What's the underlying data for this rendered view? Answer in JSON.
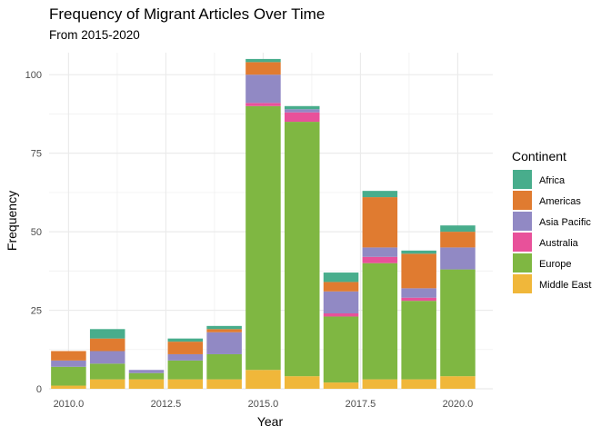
{
  "chart_data": {
    "type": "bar",
    "stacked": true,
    "title": "Frequency of Migrant Articles Over Time",
    "subtitle": "From 2015-2020",
    "xlabel": "Year",
    "ylabel": "Frequency",
    "xlim": [
      2009.5,
      2020.9
    ],
    "ylim": [
      0,
      107
    ],
    "x_ticks": [
      2010.0,
      2012.5,
      2015.0,
      2017.5,
      2020.0
    ],
    "x_tick_labels": [
      "2010.0",
      "2012.5",
      "2015.0",
      "2017.5",
      "2020.0"
    ],
    "y_ticks": [
      0,
      25,
      50,
      75,
      100
    ],
    "y_tick_labels": [
      "0",
      "25",
      "50",
      "75",
      "100"
    ],
    "grid": true,
    "legend": {
      "title": "Continent",
      "position": "right"
    },
    "x": [
      2010,
      2011,
      2012,
      2013,
      2014,
      2015,
      2016,
      2017,
      2018,
      2019,
      2020
    ],
    "series": [
      {
        "name": "Middle East",
        "color": "#F0B73A",
        "values": [
          1,
          3,
          3,
          3,
          3,
          6,
          4,
          2,
          3,
          3,
          4
        ]
      },
      {
        "name": "Europe",
        "color": "#7FB742",
        "values": [
          6,
          5,
          2,
          6,
          8,
          84,
          81,
          21,
          37,
          25,
          34
        ]
      },
      {
        "name": "Australia",
        "color": "#E8519A",
        "values": [
          0,
          0,
          0,
          0,
          0,
          1,
          3,
          1,
          2,
          1,
          0
        ]
      },
      {
        "name": "Asia Pacific",
        "color": "#9189C4",
        "values": [
          2,
          4,
          1,
          2,
          7,
          9,
          1,
          7,
          3,
          3,
          7
        ]
      },
      {
        "name": "Americas",
        "color": "#E07B30",
        "values": [
          3,
          4,
          0,
          4,
          1,
          4,
          0,
          3,
          16,
          11,
          5
        ]
      },
      {
        "name": "Africa",
        "color": "#48AD8C",
        "values": [
          0,
          3,
          0,
          1,
          1,
          1,
          1,
          3,
          2,
          1,
          2
        ]
      }
    ],
    "legend_order": [
      "Africa",
      "Americas",
      "Asia Pacific",
      "Australia",
      "Europe",
      "Middle East"
    ]
  }
}
